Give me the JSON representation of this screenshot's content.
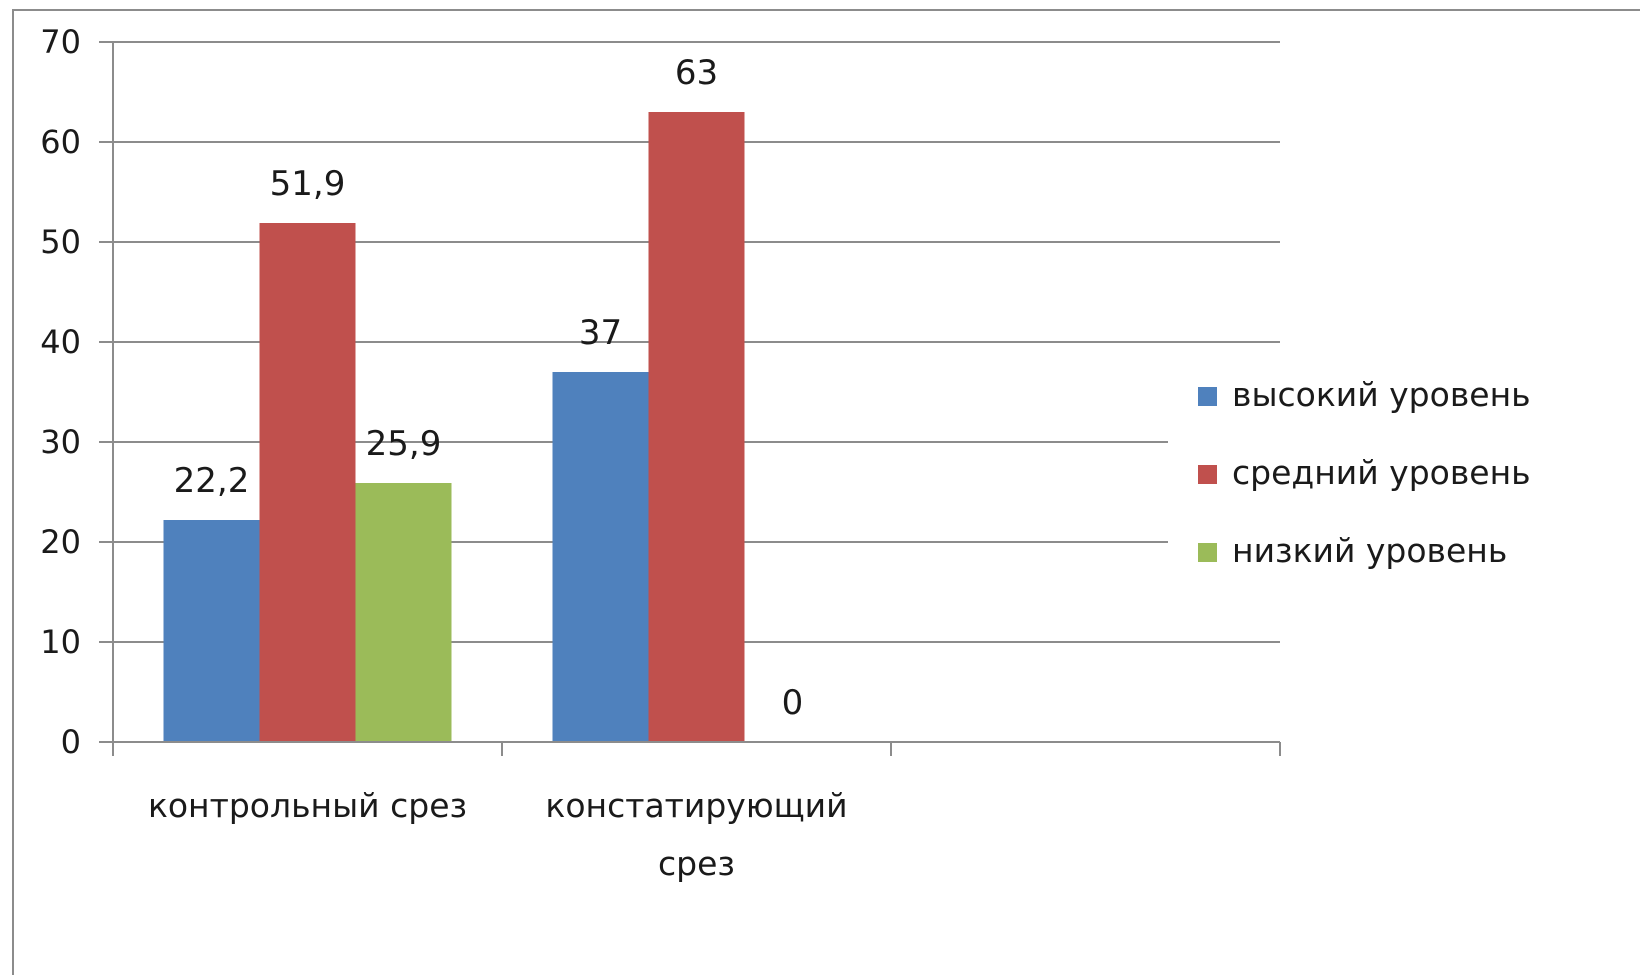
{
  "chart_data": {
    "type": "bar",
    "title": "",
    "xlabel": "",
    "ylabel": "",
    "categories": [
      [
        "контрольный срез"
      ],
      [
        "констатирующий",
        "срез"
      ],
      [
        ""
      ]
    ],
    "series": [
      {
        "name": "высокий уровень",
        "color": "#4f81bd",
        "values": [
          22.2,
          37,
          null
        ]
      },
      {
        "name": "средний уровень",
        "color": "#c0504d",
        "values": [
          51.9,
          63,
          null
        ]
      },
      {
        "name": "низкий уровень",
        "color": "#9bbb59",
        "values": [
          25.9,
          0,
          null
        ]
      }
    ],
    "data_labels": [
      [
        "22,2",
        "37",
        ""
      ],
      [
        "51,9",
        "63",
        ""
      ],
      [
        "25,9",
        "0",
        ""
      ]
    ],
    "y_ticks": [
      "0",
      "10",
      "20",
      "30",
      "40",
      "50",
      "60",
      "70"
    ],
    "ylim": [
      0,
      70
    ],
    "grid": true,
    "legend_position": "right"
  }
}
